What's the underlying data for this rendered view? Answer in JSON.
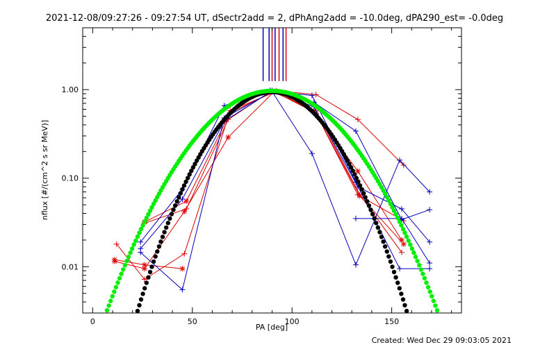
{
  "title": "2021-12-08/09:27:26 - 09:27:54 UT, dSectr2add = 2, dPhAng2add = -10.0deg, dPA290_est= -0.0deg",
  "footer": "Created: Wed Dec 29 09:03:05 2021",
  "chart_data": {
    "type": "line",
    "title": "2021-12-08/09:27:26 - 09:27:54 UT, dSectr2add = 2, dPhAng2add = -10.0deg, dPA290_est= -0.0deg",
    "xlabel": "PA [deg]",
    "ylabel": "nflux [#/(cm^2 s sr MeV)]",
    "xlim": [
      -5,
      185
    ],
    "ylim": [
      0.003,
      5
    ],
    "yscale": "log",
    "x_ticks": [
      0,
      50,
      100,
      150
    ],
    "x_tick_labels": [
      "0",
      "50",
      "100",
      "150"
    ],
    "y_ticks": [
      0.01,
      0.1,
      1.0
    ],
    "y_tick_labels": [
      "0.01",
      "0.10",
      "1.00"
    ],
    "colors": {
      "red": "#dd0000",
      "blue": "#0000bb",
      "black": "#000000",
      "green": "#00ee00"
    },
    "vertical_markers": [
      {
        "x": 85.5,
        "color": "blue"
      },
      {
        "x": 88.5,
        "color": "blue"
      },
      {
        "x": 90.0,
        "color": "red"
      },
      {
        "x": 91.5,
        "color": "blue"
      },
      {
        "x": 93.5,
        "color": "red"
      },
      {
        "x": 95.5,
        "color": "blue"
      },
      {
        "x": 97.0,
        "color": "red"
      }
    ],
    "series": [
      {
        "color": "red",
        "marker": "star",
        "x": [
          11,
          26,
          45
        ],
        "y": [
          0.012,
          0.0105,
          0.0095
        ]
      },
      {
        "color": "red",
        "marker": "plus",
        "x": [
          12,
          26,
          46,
          69,
          91,
          112,
          134,
          155
        ],
        "y": [
          0.018,
          0.0072,
          0.014,
          0.58,
          0.93,
          0.58,
          0.065,
          0.0145
        ]
      },
      {
        "color": "red",
        "marker": "star",
        "x": [
          11,
          26,
          46,
          68,
          91,
          111,
          133,
          155
        ],
        "y": [
          0.0115,
          0.0095,
          0.042,
          0.29,
          0.95,
          0.56,
          0.12,
          0.02
        ]
      },
      {
        "color": "red",
        "marker": "star",
        "x": [
          26,
          47,
          69,
          92,
          112,
          134,
          156
        ],
        "y": [
          0.032,
          0.055,
          0.55,
          0.97,
          0.54,
          0.063,
          0.018
        ]
      },
      {
        "color": "red",
        "marker": "plus",
        "x": [
          26,
          47,
          68,
          90,
          112,
          133,
          156
        ],
        "y": [
          0.031,
          0.045,
          0.46,
          0.98,
          0.88,
          0.46,
          0.14
        ]
      },
      {
        "color": "red",
        "marker": "plus",
        "x": [
          112,
          133,
          156
        ],
        "y": [
          0.54,
          0.065,
          0.033
        ]
      },
      {
        "color": "blue",
        "marker": "plus",
        "x": [
          24,
          45,
          66,
          89,
          111,
          133,
          155,
          169
        ],
        "y": [
          0.019,
          0.075,
          0.66,
          0.98,
          0.64,
          0.08,
          0.045,
          0.019
        ]
      },
      {
        "color": "blue",
        "marker": "plus",
        "x": [
          24,
          45,
          66,
          90,
          111,
          132,
          155,
          169
        ],
        "y": [
          0.016,
          0.058,
          0.44,
          0.97,
          0.72,
          0.34,
          0.034,
          0.044
        ]
      },
      {
        "color": "blue",
        "marker": "plus",
        "x": [
          24,
          45,
          66,
          90,
          110,
          132,
          154,
          169
        ],
        "y": [
          0.0145,
          0.0055,
          0.48,
          0.95,
          0.19,
          0.0105,
          0.16,
          0.07
        ]
      },
      {
        "color": "blue",
        "marker": "plus",
        "x": [
          89,
          110,
          132,
          154,
          169
        ],
        "y": [
          0.96,
          0.86,
          0.09,
          0.0095,
          0.0095
        ]
      },
      {
        "color": "blue",
        "marker": "plus",
        "x": [
          132,
          155,
          169
        ],
        "y": [
          0.035,
          0.035,
          0.011
        ]
      },
      {
        "color": "black",
        "marker": "dot",
        "fit": {
          "center": 90,
          "sigma": 20,
          "peak": 0.94
        }
      },
      {
        "color": "green",
        "marker": "dot",
        "fit": {
          "center": 90,
          "sigma": 24.5,
          "peak": 0.97
        }
      }
    ]
  }
}
